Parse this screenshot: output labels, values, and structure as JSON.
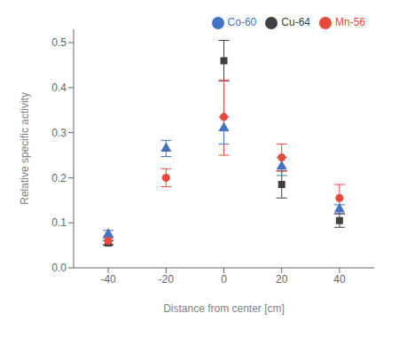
{
  "chart_data": {
    "type": "scatter",
    "xlabel": "Distance from center [cm]",
    "ylabel": "Relative specific activity",
    "x": [
      -40,
      -20,
      0,
      20,
      40
    ],
    "series": [
      {
        "name": "Cu-64",
        "color": "#404040",
        "marker": "square",
        "values": [
          0.055,
          null,
          0.46,
          0.185,
          0.105
        ],
        "yerr_lo": [
          0.005,
          null,
          0.045,
          0.03,
          0.015
        ],
        "yerr_hi": [
          0.005,
          null,
          0.045,
          0.03,
          0.015
        ]
      },
      {
        "name": "Mn-56",
        "color": "#e8493a",
        "marker": "circle",
        "values": [
          0.06,
          0.2,
          0.335,
          0.245,
          0.155
        ],
        "yerr_lo": [
          0.008,
          0.02,
          0.085,
          0.03,
          0.035
        ],
        "yerr_hi": [
          0.008,
          0.02,
          0.082,
          0.03,
          0.03
        ]
      },
      {
        "name": "Co-60",
        "color": "#4472c4",
        "marker": "triangle",
        "values": [
          0.075,
          0.265,
          0.31,
          0.225,
          0.13
        ],
        "yerr_lo": [
          0.01,
          0.018,
          0.035,
          0.02,
          0.01
        ],
        "yerr_hi": [
          0.008,
          0.018,
          0.025,
          0.02,
          0.01
        ]
      }
    ],
    "xlim": [
      -52,
      52
    ],
    "xticks": [
      -40,
      -20,
      0,
      20,
      40
    ],
    "ylim": [
      0.0,
      0.53
    ],
    "yticks": [
      {
        "value": 0.0,
        "label": "0.0"
      },
      0.1,
      0.2,
      0.3,
      0.4,
      0.5
    ],
    "legend": "upper right",
    "grid": false
  }
}
